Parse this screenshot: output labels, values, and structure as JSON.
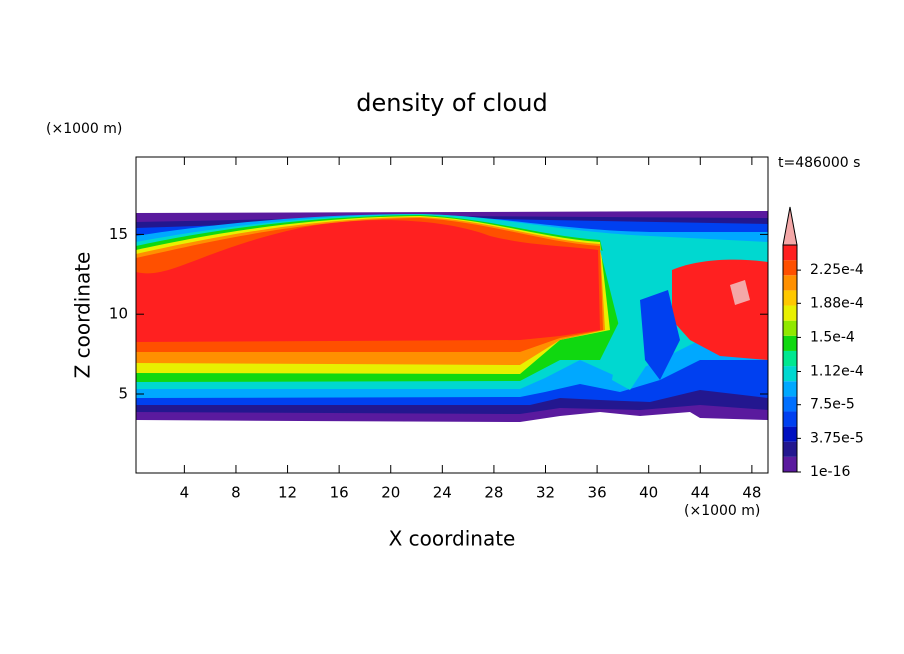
{
  "chart_data": {
    "type": "contour",
    "title": "density of cloud",
    "x_label": "X coordinate",
    "y_label": "Z coordinate",
    "x_unit": "(×1000 m)",
    "y_unit": "(×1000 m)",
    "annotation": "t=486000 s",
    "xlim": [
      0.25,
      49.25
    ],
    "ylim": [
      0.05,
      19.85
    ],
    "xticks": [
      4,
      8,
      12,
      16,
      20,
      24,
      28,
      32,
      36,
      40,
      44,
      48
    ],
    "yticks": [
      5,
      10,
      15
    ],
    "colorbar": {
      "lim": [
        0,
        0.000253
      ],
      "colors": [
        "#5a1a9e",
        "#23178f",
        "#0010c0",
        "#0040f0",
        "#0070ff",
        "#00a8ff",
        "#00d8d0",
        "#00e890",
        "#10d810",
        "#90e800",
        "#e8f000",
        "#ffc800",
        "#ff9000",
        "#ff5000",
        "#ff2020"
      ],
      "extend_color": "#f4a8a8",
      "ticks": [
        {
          "value": 1e-16,
          "label": "1e-16"
        },
        {
          "value": 3.75e-05,
          "label": "3.75e-5"
        },
        {
          "value": 7.5e-05,
          "label": "7.5e-5"
        },
        {
          "value": 0.000112,
          "label": "1.12e-4"
        },
        {
          "value": 0.00015,
          "label": "1.5e-4"
        },
        {
          "value": 0.000188,
          "label": "1.88e-4"
        },
        {
          "value": 0.000225,
          "label": "2.25e-4"
        }
      ]
    }
  }
}
